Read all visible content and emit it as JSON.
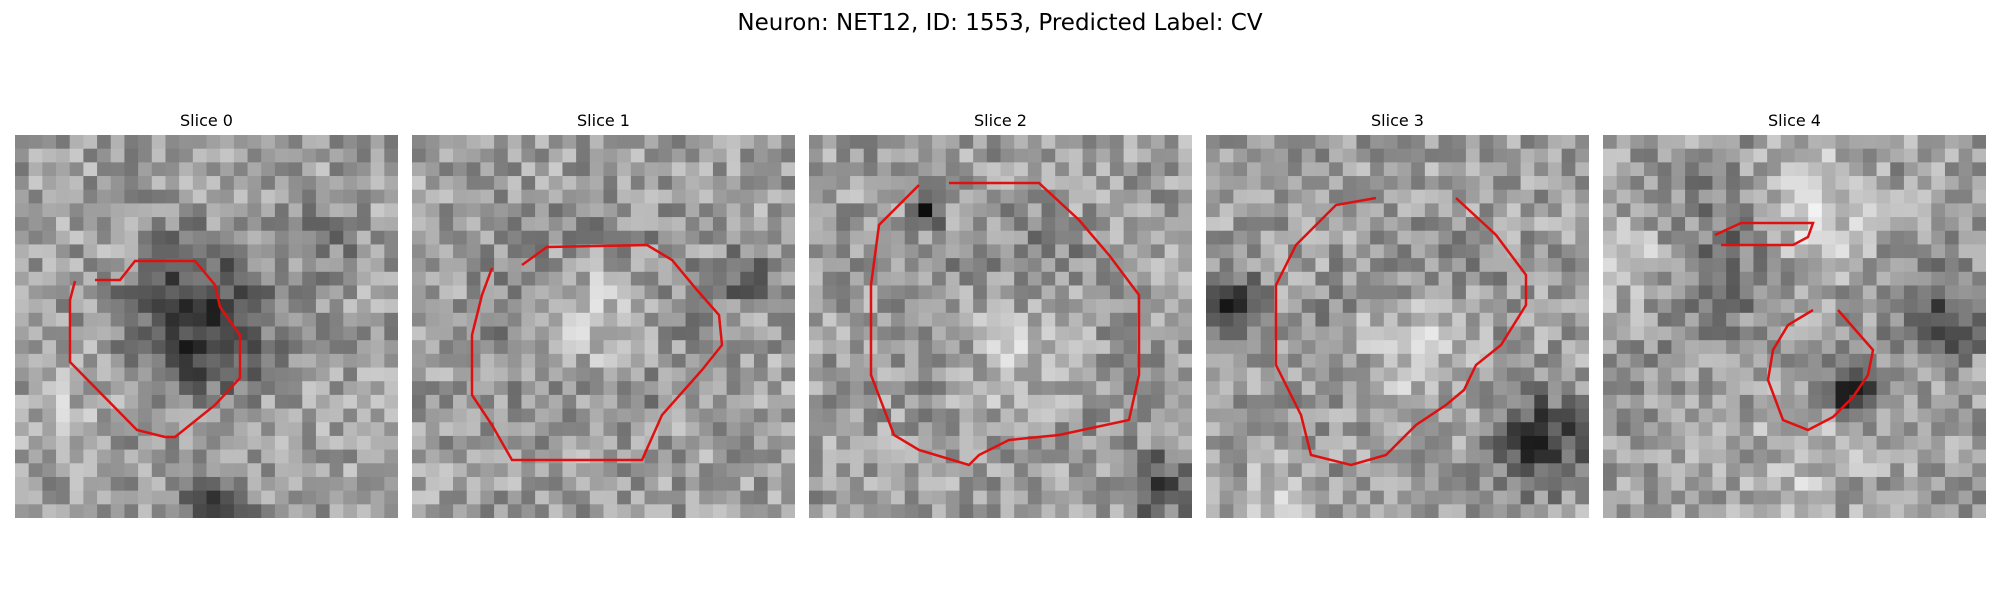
{
  "figure": {
    "title": "Neuron: NET12, ID: 1553, Predicted Label: CV"
  },
  "panels": [
    {
      "title": "Slice 0",
      "image": "grayscale-em-slice",
      "overlay": "red-contour",
      "contour_color": "#e01010"
    },
    {
      "title": "Slice 1",
      "image": "grayscale-em-slice",
      "overlay": "red-contour",
      "contour_color": "#e01010"
    },
    {
      "title": "Slice 2",
      "image": "grayscale-em-slice",
      "overlay": "red-contour",
      "contour_color": "#e01010"
    },
    {
      "title": "Slice 3",
      "image": "grayscale-em-slice",
      "overlay": "red-contour",
      "contour_color": "#e01010"
    },
    {
      "title": "Slice 4",
      "image": "grayscale-em-slice",
      "overlay": "red-contour",
      "contour_color": "#e01010"
    }
  ]
}
